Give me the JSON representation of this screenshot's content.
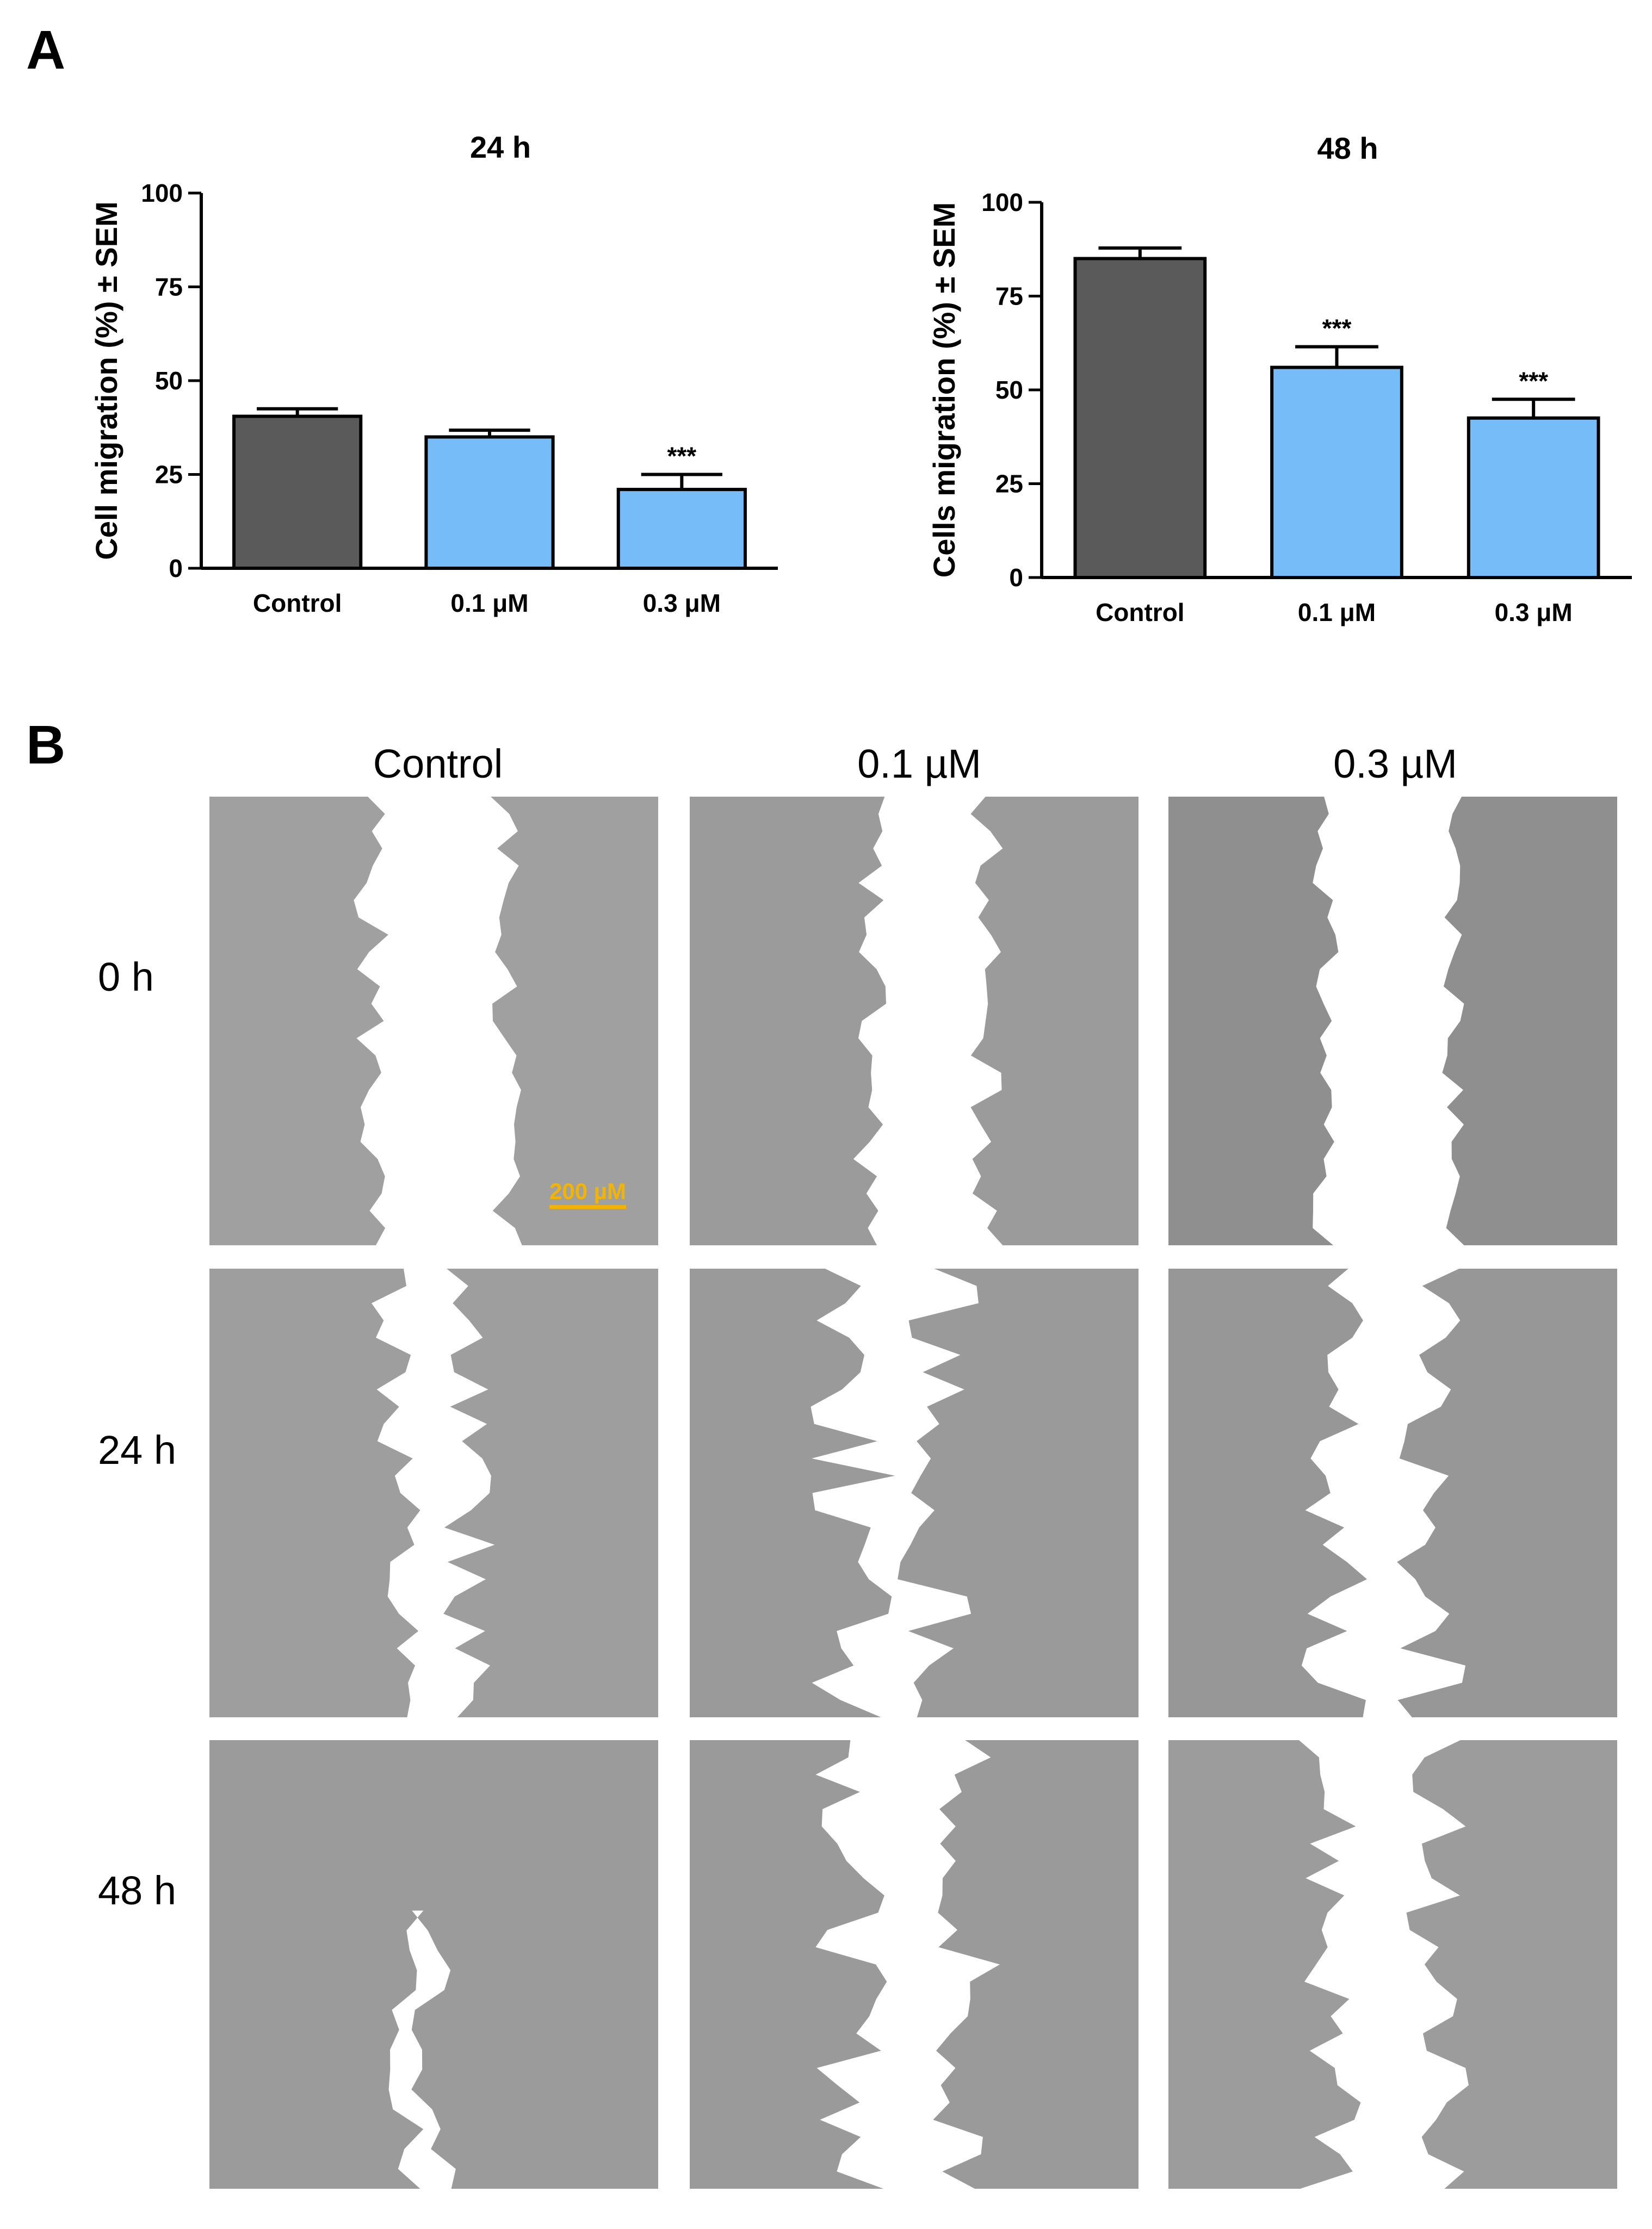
{
  "panels": {
    "a": "A",
    "b": "B"
  },
  "chart_data": [
    {
      "type": "bar",
      "title": "24 h",
      "ylabel": "Cell migration (%) ± SEM",
      "xlabel": "",
      "categories": [
        "Control",
        "0.1 μM",
        "0.3 μM"
      ],
      "values": [
        40.5,
        35,
        21
      ],
      "errors": [
        2,
        1.8,
        4
      ],
      "significance": [
        "",
        "",
        "***"
      ],
      "colors": [
        "#5a5a5a",
        "#75bcf8",
        "#75bcf8"
      ],
      "ylim": [
        0,
        100
      ],
      "yticks": [
        0,
        25,
        50,
        75,
        100
      ],
      "grid": false
    },
    {
      "type": "bar",
      "title": "48 h",
      "ylabel": "Cells migration (%) ± SEM",
      "xlabel": "",
      "categories": [
        "Control",
        "0.1 μM",
        "0.3 μM"
      ],
      "values": [
        85,
        56,
        42.5
      ],
      "errors": [
        2.8,
        5.5,
        5
      ],
      "significance": [
        "",
        "***",
        "***"
      ],
      "colors": [
        "#5a5a5a",
        "#75bcf8",
        "#75bcf8"
      ],
      "ylim": [
        0,
        100
      ],
      "yticks": [
        0,
        25,
        50,
        75,
        100
      ],
      "grid": false
    }
  ],
  "micrographs": {
    "columns": [
      "Control",
      "0.1 µM",
      "0.3 µM"
    ],
    "rows": [
      "0 h",
      "24 h",
      "48 h"
    ],
    "scale_bar": "200 µM",
    "scale_bar_color": "#f2b400",
    "cell_color": "#9a9a9a",
    "wound_color": "#ffffff"
  }
}
